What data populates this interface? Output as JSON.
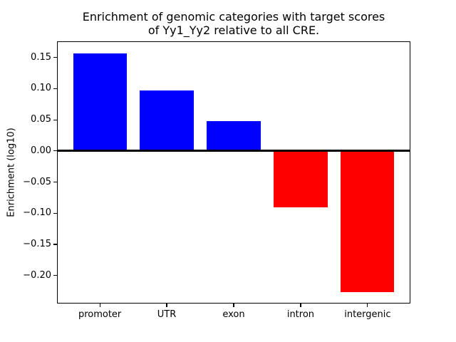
{
  "chart_data": {
    "type": "bar",
    "title_line1": "Enrichment of genomic categories with target scores",
    "title_line2": "of Yy1_Yy2 relative to all CRE.",
    "title": "Enrichment of genomic categories with target scores\nof Yy1_Yy2 relative to all CRE.",
    "xlabel": "",
    "ylabel": "Enrichment (log10)",
    "categories": [
      "promoter",
      "UTR",
      "exon",
      "intron",
      "intergenic"
    ],
    "values": [
      0.157,
      0.097,
      0.048,
      -0.091,
      -0.227
    ],
    "bar_colors": [
      "#0000ff",
      "#0000ff",
      "#0000ff",
      "#ff0000",
      "#ff0000"
    ],
    "positive_color": "#0000ff",
    "negative_color": "#ff0000",
    "zero_line_color": "#000000",
    "axis_color": "#000000",
    "background_color": "#ffffff",
    "ylim": [
      -0.245,
      0.176
    ],
    "grid": false,
    "legend_position": "none",
    "yticks": [
      {
        "label": "0.15",
        "value": 0.15
      },
      {
        "label": "0.10",
        "value": 0.1
      },
      {
        "label": "0.05",
        "value": 0.05
      },
      {
        "label": "0.00",
        "value": 0.0
      },
      {
        "label": "−0.05",
        "value": -0.05
      },
      {
        "label": "−0.10",
        "value": -0.1
      },
      {
        "label": "−0.15",
        "value": -0.15
      },
      {
        "label": "−0.20",
        "value": -0.2
      }
    ]
  }
}
